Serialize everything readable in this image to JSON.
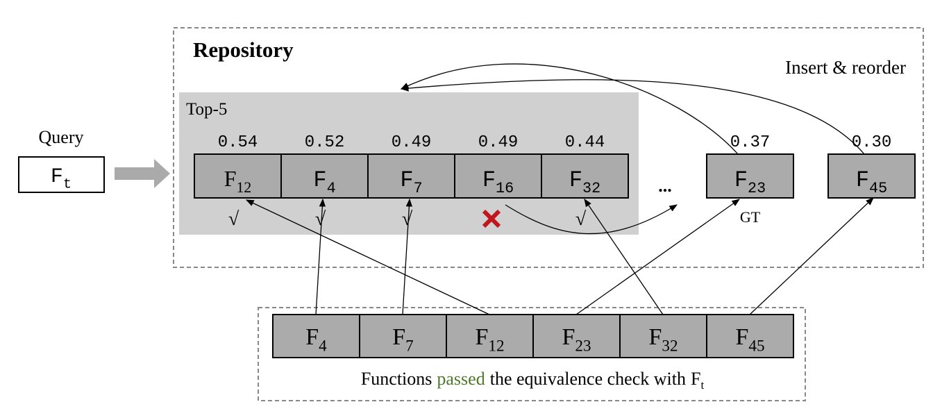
{
  "query": {
    "label": "Query",
    "name": "F",
    "sub": "t"
  },
  "repository": {
    "title": "Repository",
    "note": "Insert & reorder",
    "top_label": "Top-5",
    "top_items": [
      {
        "score": "0.54",
        "name": "F",
        "sub": "12",
        "check": "√"
      },
      {
        "score": "0.52",
        "name": "F",
        "sub": "4",
        "check": "√"
      },
      {
        "score": "0.49",
        "name": "F",
        "sub": "7",
        "check": "√"
      },
      {
        "score": "0.49",
        "name": "F",
        "sub": "16",
        "check": null
      },
      {
        "score": "0.44",
        "name": "F",
        "sub": "32",
        "check": "√"
      }
    ],
    "ellipsis": "...",
    "other_items": [
      {
        "score": "0.37",
        "name": "F",
        "sub": "23",
        "tag": "GT"
      },
      {
        "score": "0.30",
        "name": "F",
        "sub": "45",
        "tag": null
      }
    ]
  },
  "passed": {
    "items": [
      {
        "name": "F",
        "sub": "4"
      },
      {
        "name": "F",
        "sub": "7"
      },
      {
        "name": "F",
        "sub": "12"
      },
      {
        "name": "F",
        "sub": "23"
      },
      {
        "name": "F",
        "sub": "32"
      },
      {
        "name": "F",
        "sub": "45"
      }
    ],
    "caption": {
      "before": "Functions",
      "highlight": "passed",
      "after": "the equivalence check with",
      "subject": "F",
      "subject_sub": "t"
    }
  }
}
